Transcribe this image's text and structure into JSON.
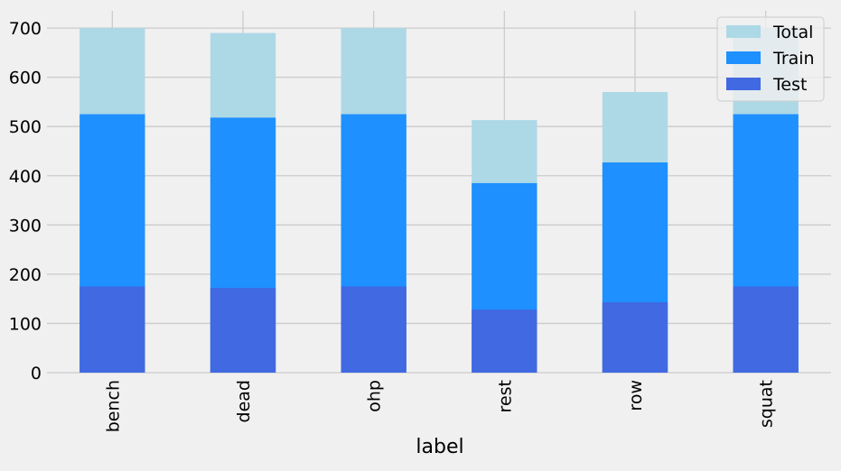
{
  "chart_data": {
    "type": "bar",
    "stacked": false,
    "overlay": true,
    "xlabel": "label",
    "ylabel": "",
    "title": "",
    "categories": [
      "bench",
      "dead",
      "ohp",
      "rest",
      "row",
      "squat"
    ],
    "series": [
      {
        "name": "Total",
        "values": [
          700,
          690,
          700,
          513,
          570,
          700
        ],
        "color": "#add8e6"
      },
      {
        "name": "Train",
        "values": [
          525,
          518,
          525,
          385,
          427,
          525
        ],
        "color": "#1e90ff"
      },
      {
        "name": "Test",
        "values": [
          175,
          172,
          175,
          128,
          143,
          175
        ],
        "color": "#4169e1"
      }
    ],
    "ylim": [
      0,
      735
    ],
    "yticks": [
      0,
      100,
      200,
      300,
      400,
      500,
      600,
      700
    ],
    "grid": true,
    "legend_position": "top-right",
    "background": "#f0f0f0",
    "grid_color": "#cbcbcb"
  }
}
